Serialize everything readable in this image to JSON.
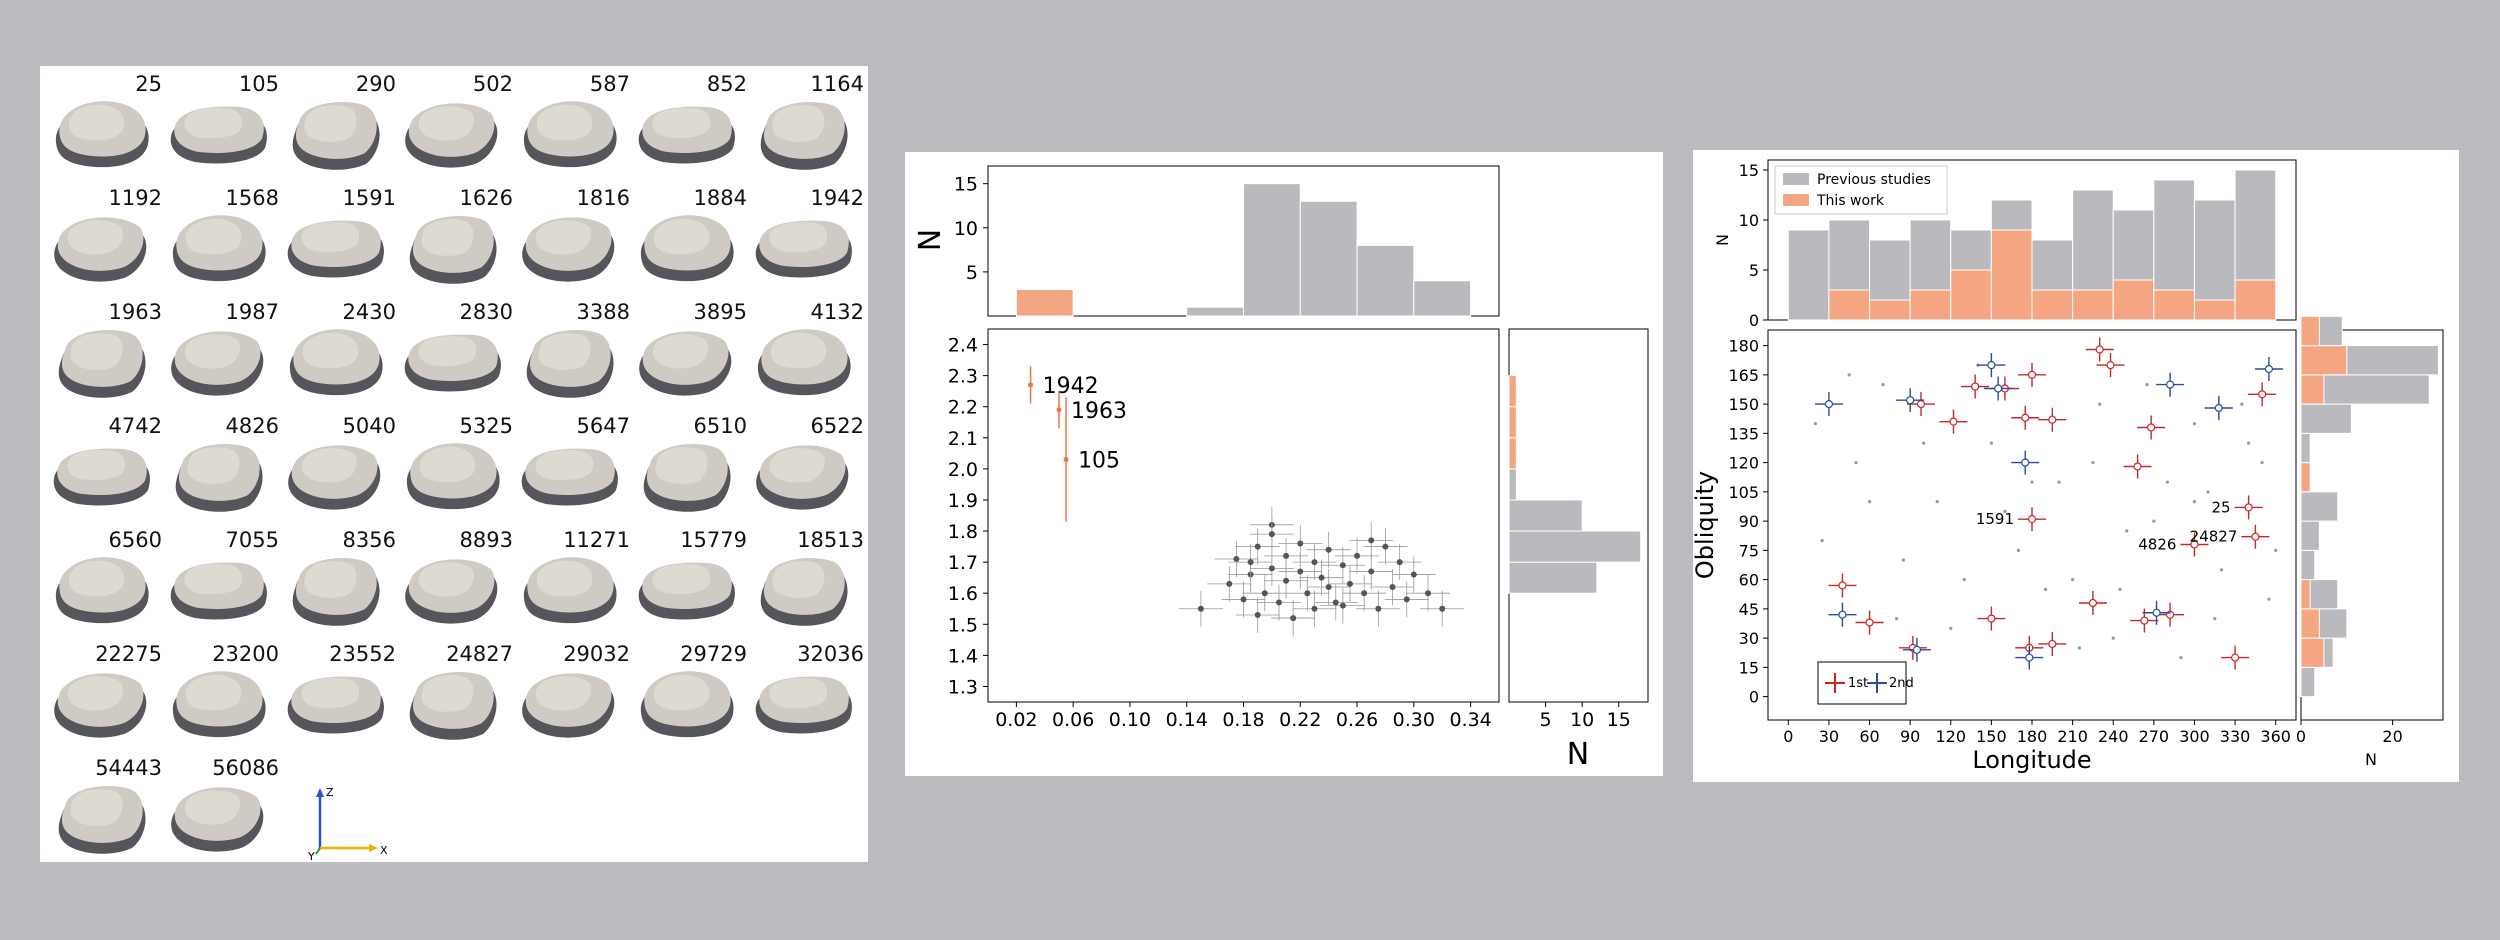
{
  "shapes": {
    "asteroids": [
      "25",
      "105",
      "290",
      "502",
      "587",
      "852",
      "1164",
      "1192",
      "1568",
      "1591",
      "1626",
      "1816",
      "1884",
      "1942",
      "1963",
      "1987",
      "2430",
      "2830",
      "3388",
      "3895",
      "4132",
      "4742",
      "4826",
      "5040",
      "5325",
      "5647",
      "6510",
      "6522",
      "6560",
      "7055",
      "8356",
      "8893",
      "11271",
      "15779",
      "18513",
      "22275",
      "23200",
      "23552",
      "24827",
      "29032",
      "29729",
      "32036",
      "54443",
      "56086"
    ],
    "frame_axes": {
      "z": "Z",
      "y": "Y",
      "x": "X"
    }
  },
  "chart_data": [
    {
      "type": "scatter",
      "xlabel": "",
      "ylabel": "",
      "xlim": [
        0.0,
        0.36
      ],
      "ylim": [
        1.25,
        2.45
      ],
      "xticks": [
        "0.02",
        "0.06",
        "0.10",
        "0.14",
        "0.18",
        "0.22",
        "0.26",
        "0.30",
        "0.34"
      ],
      "yticks": [
        "1.3",
        "1.4",
        "1.5",
        "1.6",
        "1.7",
        "1.8",
        "1.9",
        "2.0",
        "2.1",
        "2.2",
        "2.3",
        "2.4"
      ],
      "highlighted": [
        {
          "label": "1942",
          "x": 0.03,
          "y": 2.27,
          "yerr": 0.06
        },
        {
          "label": "1963",
          "x": 0.05,
          "y": 2.19,
          "yerr": 0.06
        },
        {
          "label": "105",
          "x": 0.055,
          "y": 2.03,
          "yerr": 0.2
        }
      ],
      "others": [
        [
          0.15,
          1.55
        ],
        [
          0.17,
          1.63
        ],
        [
          0.175,
          1.71
        ],
        [
          0.18,
          1.58
        ],
        [
          0.185,
          1.66
        ],
        [
          0.19,
          1.53
        ],
        [
          0.19,
          1.75
        ],
        [
          0.195,
          1.6
        ],
        [
          0.2,
          1.68
        ],
        [
          0.2,
          1.82
        ],
        [
          0.205,
          1.57
        ],
        [
          0.21,
          1.72
        ],
        [
          0.21,
          1.64
        ],
        [
          0.215,
          1.52
        ],
        [
          0.22,
          1.76
        ],
        [
          0.22,
          1.67
        ],
        [
          0.225,
          1.6
        ],
        [
          0.23,
          1.7
        ],
        [
          0.235,
          1.65
        ],
        [
          0.24,
          1.62
        ],
        [
          0.24,
          1.74
        ],
        [
          0.245,
          1.57
        ],
        [
          0.25,
          1.69
        ],
        [
          0.255,
          1.63
        ],
        [
          0.26,
          1.72
        ],
        [
          0.265,
          1.6
        ],
        [
          0.27,
          1.67
        ],
        [
          0.275,
          1.55
        ],
        [
          0.28,
          1.75
        ],
        [
          0.285,
          1.62
        ],
        [
          0.29,
          1.7
        ],
        [
          0.295,
          1.58
        ],
        [
          0.3,
          1.66
        ],
        [
          0.31,
          1.6
        ],
        [
          0.32,
          1.55
        ],
        [
          0.2,
          1.79
        ],
        [
          0.23,
          1.55
        ],
        [
          0.185,
          1.7
        ],
        [
          0.27,
          1.77
        ],
        [
          0.25,
          1.56
        ]
      ],
      "top_hist": {
        "ylabel": "N",
        "yticks": [
          "5",
          "10",
          "15"
        ],
        "bins": [
          0.02,
          0.06,
          0.1,
          0.14,
          0.18,
          0.22,
          0.26,
          0.3,
          0.34
        ],
        "this_work": [
          3,
          0,
          0,
          0,
          0,
          0,
          0,
          0
        ],
        "previous": [
          0,
          0,
          0,
          1,
          15,
          13,
          8,
          4
        ]
      },
      "right_hist": {
        "xlabel": "N",
        "xticks": [
          "5",
          "10",
          "15"
        ],
        "bins": [
          1.3,
          1.4,
          1.5,
          1.6,
          1.7,
          1.8,
          1.9,
          2.0,
          2.1,
          2.2,
          2.3,
          2.4
        ],
        "previous": [
          0,
          0,
          0,
          12,
          18,
          10,
          1,
          0,
          0,
          0,
          0,
          0
        ],
        "this_work": [
          0,
          0,
          0,
          0,
          0,
          0,
          0,
          1,
          1,
          1,
          0,
          0
        ]
      },
      "colors": {
        "this_work": "#f4a582",
        "previous": "#b9b9be",
        "points": "#555555"
      }
    },
    {
      "type": "scatter",
      "xlabel": "Longitude",
      "ylabel": "Obliquity",
      "xlim": [
        -15,
        375
      ],
      "ylim": [
        -12,
        188
      ],
      "xticks": [
        "0",
        "30",
        "60",
        "90",
        "120",
        "150",
        "180",
        "210",
        "240",
        "270",
        "300",
        "330",
        "360"
      ],
      "yticks": [
        "0",
        "15",
        "30",
        "45",
        "60",
        "75",
        "90",
        "105",
        "120",
        "135",
        "150",
        "165",
        "180"
      ],
      "legend_placement": "bottom-left",
      "legend": {
        "first": "1st",
        "second": "2nd"
      },
      "red_poles": [
        [
          40,
          57
        ],
        [
          60,
          38
        ],
        [
          92,
          25
        ],
        [
          98,
          150
        ],
        [
          122,
          141
        ],
        [
          138,
          159
        ],
        [
          160,
          158
        ],
        [
          175,
          143
        ],
        [
          180,
          165
        ],
        [
          195,
          142
        ],
        [
          230,
          178
        ],
        [
          238,
          170
        ],
        [
          258,
          118
        ],
        [
          263,
          39
        ],
        [
          268,
          138
        ],
        [
          282,
          42
        ],
        [
          300,
          78
        ],
        [
          330,
          20
        ],
        [
          340,
          97
        ],
        [
          345,
          82
        ],
        [
          350,
          155
        ],
        [
          150,
          40
        ],
        [
          178,
          25
        ],
        [
          195,
          27
        ],
        [
          225,
          48
        ],
        [
          180,
          91
        ]
      ],
      "blue_poles": [
        [
          30,
          150
        ],
        [
          40,
          42
        ],
        [
          90,
          152
        ],
        [
          95,
          24
        ],
        [
          150,
          170
        ],
        [
          155,
          158
        ],
        [
          175,
          120
        ],
        [
          178,
          20
        ],
        [
          272,
          43
        ],
        [
          282,
          160
        ],
        [
          318,
          148
        ],
        [
          355,
          168
        ]
      ],
      "labeled_poles": [
        {
          "label": "25",
          "x": 340,
          "y": 97
        },
        {
          "label": "1591",
          "x": 180,
          "y": 91
        },
        {
          "label": "4826",
          "x": 300,
          "y": 78
        },
        {
          "label": "24827",
          "x": 345,
          "y": 82
        }
      ],
      "top_hist": {
        "ylabel": "N",
        "yticks": [
          "0",
          "5",
          "10",
          "15"
        ],
        "legend": [
          "Previous studies",
          "This work"
        ],
        "previous": [
          9,
          10,
          8,
          10,
          9,
          12,
          8,
          13,
          11,
          14,
          12,
          15
        ],
        "this_work": [
          0,
          3,
          2,
          3,
          5,
          9,
          3,
          3,
          4,
          3,
          2,
          4
        ]
      },
      "right_hist": {
        "xlabel": "N",
        "xticks": [
          "0",
          "20"
        ],
        "previous": [
          3,
          7,
          10,
          8,
          3,
          4,
          8,
          2,
          2,
          11,
          28,
          30,
          9
        ],
        "this_work": [
          0,
          5,
          4,
          2,
          0,
          0,
          0,
          2,
          0,
          0,
          5,
          10,
          4
        ]
      },
      "colors": {
        "this_work": "#f4a582",
        "previous": "#b9b9be",
        "first": "#c62828",
        "second": "#2b4b9b"
      }
    }
  ]
}
